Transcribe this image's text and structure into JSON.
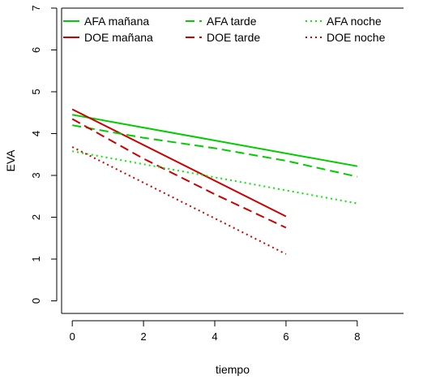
{
  "chart_data": {
    "type": "line",
    "xlabel": "tiempo",
    "ylabel": "EVA",
    "xlim": [
      -0.3,
      9.3
    ],
    "ylim": [
      -0.3,
      7.0
    ],
    "x_ticks": [
      0,
      2,
      4,
      6,
      8
    ],
    "y_ticks": [
      0,
      1,
      2,
      3,
      4,
      5,
      6,
      7
    ],
    "x_tick_labels": [
      "0",
      "2",
      "4",
      "6",
      "8"
    ],
    "y_tick_labels": [
      "0",
      "1",
      "2",
      "3",
      "4",
      "5",
      "6",
      "7"
    ],
    "legend_position": "top-left",
    "series": [
      {
        "name": "AFA mañana",
        "color": "#00cc00",
        "dash": "solid",
        "x": [
          0,
          8
        ],
        "y": [
          4.45,
          3.22
        ]
      },
      {
        "name": "DOE mañana",
        "color": "#cc0000",
        "dash": "solid",
        "x": [
          0,
          6
        ],
        "y": [
          4.58,
          2.02
        ]
      },
      {
        "name": "AFA tarde",
        "color": "#00cc00",
        "dash": "dashed",
        "x": [
          0,
          2,
          4,
          6,
          8
        ],
        "y": [
          4.2,
          3.9,
          3.65,
          3.35,
          2.97
        ]
      },
      {
        "name": "DOE tarde",
        "color": "#cc0000",
        "dash": "dashed",
        "x": [
          0,
          2,
          4,
          6
        ],
        "y": [
          4.35,
          3.4,
          2.55,
          1.75
        ]
      },
      {
        "name": "AFA noche",
        "color": "#00ee00",
        "dash": "dotted",
        "x": [
          0,
          8
        ],
        "y": [
          3.58,
          2.33
        ]
      },
      {
        "name": "DOE noche",
        "color": "#cc0000",
        "dash": "dotted",
        "x": [
          0,
          6
        ],
        "y": [
          3.68,
          1.12
        ]
      }
    ]
  }
}
